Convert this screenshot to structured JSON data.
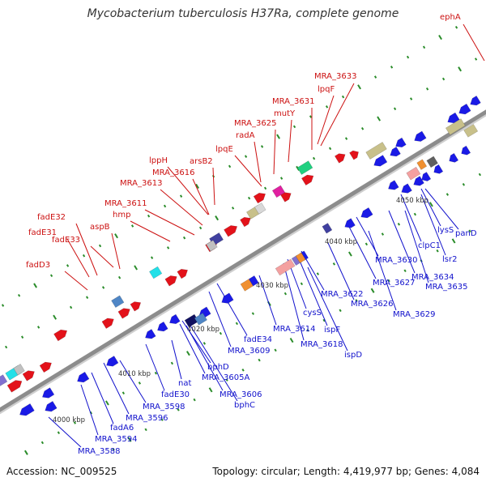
{
  "title": "Mycobacterium tuberculosis H37Ra, complete genome",
  "footer": {
    "accession": "Accession: NC_009525",
    "stats": "Topology: circular; Length: 4,419,977 bp; Genes: 4,084"
  },
  "colors": {
    "backbone": "#8c8c8c",
    "forward_gene": "#e3121a",
    "reverse_gene": "#1a1ae6",
    "label_top": "#cc1111",
    "label_bottom": "#1111cc",
    "tick": "#2a8c2a"
  },
  "scale_labels": [
    "4000 kbp",
    "4010 kbp",
    "4020 kbp",
    "4030 kbp",
    "4040 kbp",
    "4050 kbp"
  ],
  "top_labels": [
    "ephA",
    "MRA_3633",
    "lpqF",
    "MRA_3631",
    "mutY",
    "MRA_3625",
    "radA",
    "lpqE",
    "arsB2",
    "lppH",
    "MRA_3616",
    "MRA_3613",
    "MRA_3611",
    "hmp",
    "fadE32",
    "fadE31",
    "fadE33",
    "aspB",
    "fadD3"
  ],
  "bottom_labels": [
    "panD",
    "lysS",
    "clpC1",
    "lsr2",
    "MRA_3634",
    "MRA_3635",
    "MRA_3630",
    "MRA_3627",
    "MRA_3629",
    "MRA_3626",
    "MRA_3622",
    "cysS",
    "ispF",
    "MRA_3618",
    "ispD",
    "MRA_3614",
    "fadE34",
    "MRA_3609",
    "bphD",
    "MRA_3605A",
    "MRA_3606",
    "bphC",
    "nat",
    "fadE30",
    "MRA_3598",
    "MRA_3596",
    "fadA6",
    "MRA_3594",
    "MRA_3588"
  ]
}
